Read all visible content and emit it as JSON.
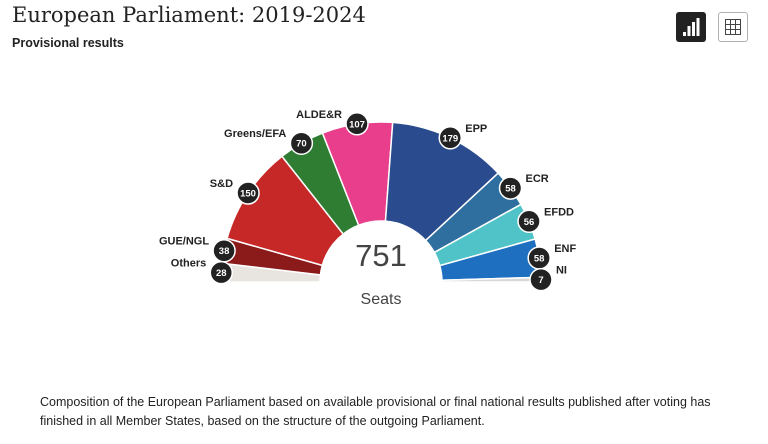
{
  "header": {
    "title": "European Parliament: 2019-2024",
    "subtitle": "Provisional results"
  },
  "toolbar": {
    "chart_view_icon": "bar-chart-icon",
    "table_view_icon": "grid-table-icon"
  },
  "caption": "Composition of the European Parliament based on available provisional or final national results published after voting has finished in all Member States, based on the structure of the outgoing Parliament.",
  "chart_data": {
    "type": "pie",
    "shape": "half-donut",
    "title": "European Parliament: 2019-2024",
    "subtitle": "Provisional results",
    "center_value": "751",
    "center_label": "Seats",
    "total": 751,
    "segments": [
      {
        "label": "Others",
        "value": 28,
        "color": "#e8e4df"
      },
      {
        "label": "GUE/NGL",
        "value": 38,
        "color": "#8b1a1a"
      },
      {
        "label": "S&D",
        "value": 150,
        "color": "#c62828"
      },
      {
        "label": "Greens/EFA",
        "value": 70,
        "color": "#2e7d32"
      },
      {
        "label": "ALDE&R",
        "value": 107,
        "color": "#e83e8c"
      },
      {
        "label": "EPP",
        "value": 179,
        "color": "#2a4b8d"
      },
      {
        "label": "ECR",
        "value": 58,
        "color": "#2f6fa0"
      },
      {
        "label": "EFDD",
        "value": 56,
        "color": "#4fc3c7"
      },
      {
        "label": "ENF",
        "value": 58,
        "color": "#1e6fc0"
      },
      {
        "label": "NI",
        "value": 7,
        "color": "#d8d8d8"
      }
    ]
  }
}
